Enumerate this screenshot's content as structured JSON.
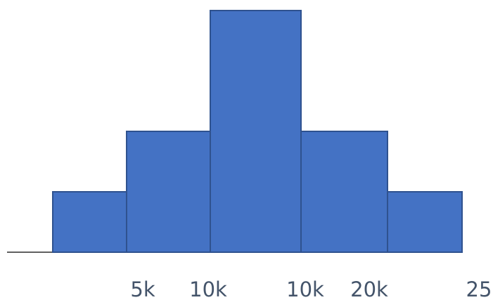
{
  "chart_data": {
    "type": "bar",
    "subtype": "histogram",
    "bins": [
      {
        "value": 1
      },
      {
        "value": 2
      },
      {
        "value": 4
      },
      {
        "value": 2
      },
      {
        "value": 1
      }
    ],
    "tick_labels": [
      "5k",
      "10k",
      "10k",
      "20k",
      "25"
    ],
    "ylim": [
      0,
      4
    ],
    "grid": false,
    "legend": "none",
    "bar_color": "#4472C4",
    "bar_edge_color": "#2F528F",
    "baseline_color": "#000000",
    "tick_label_color": "#44546A"
  }
}
